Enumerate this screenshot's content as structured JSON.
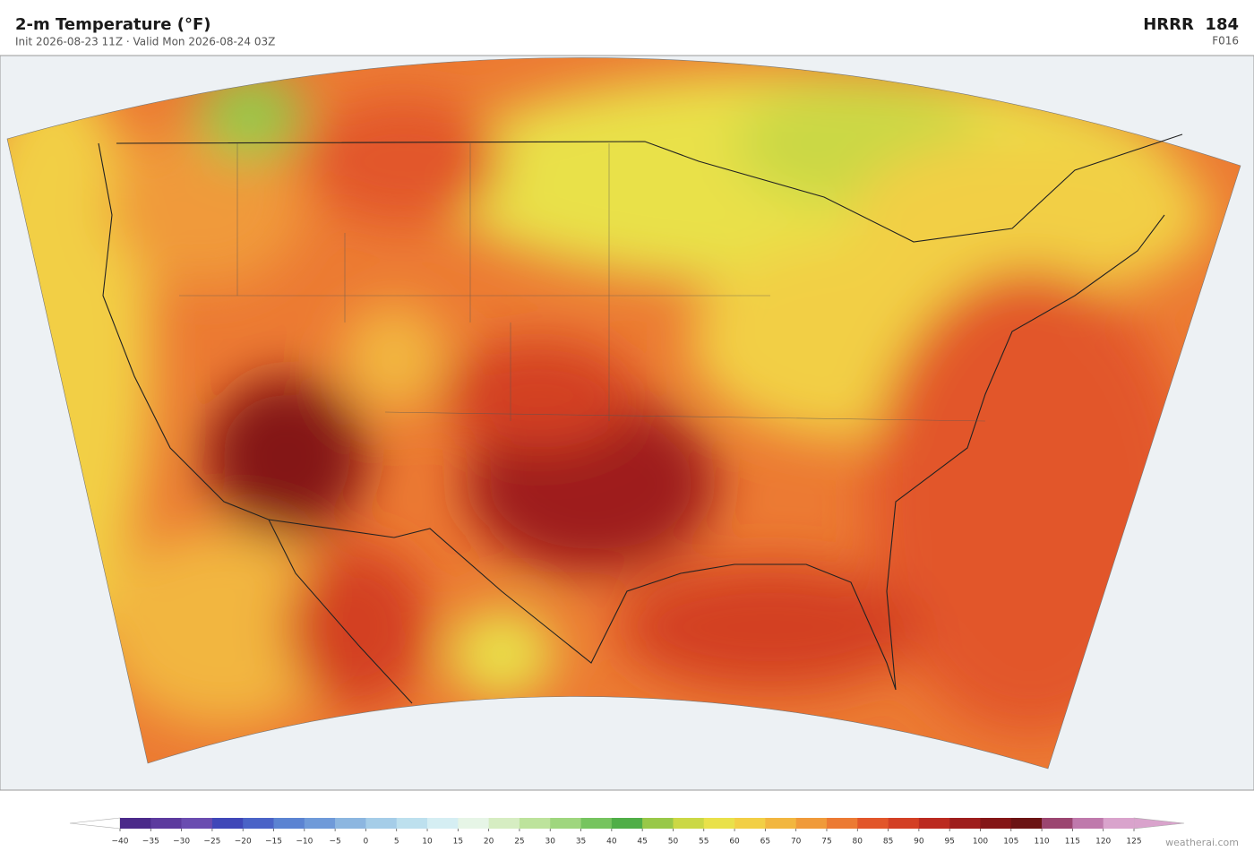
{
  "header": {
    "title": "2-m Temperature  (°F)",
    "subtitle": "Init 2026-08-23 11Z  ·  Valid Mon 2026-08-24 03Z",
    "model": "HRRR  184",
    "forecast_hour": "F016"
  },
  "colorbar": {
    "ticks": [
      {
        "value": -40,
        "label": "−40"
      },
      {
        "value": -35,
        "label": "−35"
      },
      {
        "value": -30,
        "label": "−30"
      },
      {
        "value": -25,
        "label": "−25"
      },
      {
        "value": -20,
        "label": "−20"
      },
      {
        "value": -15,
        "label": "−15"
      },
      {
        "value": -10,
        "label": "−10"
      },
      {
        "value": -5,
        "label": "−5"
      },
      0,
      5,
      10,
      15,
      20,
      25,
      30,
      35,
      40,
      45,
      50,
      55,
      60,
      65,
      70,
      75,
      80,
      85,
      90,
      95,
      100,
      105,
      110,
      115,
      120,
      125
    ],
    "colors": [
      "#4b2a8a",
      "#5c3a9e",
      "#6a4cb0",
      "#3f47b8",
      "#4a63c7",
      "#5b83d2",
      "#6f9ad9",
      "#8cb6e0",
      "#a5cde8",
      "#bde0ee",
      "#d5eef3",
      "#e6f5e6",
      "#d6edc2",
      "#bde39c",
      "#9fd67e",
      "#76c45f",
      "#4fae47",
      "#98c848",
      "#cbd845",
      "#e9e14a",
      "#f2cf45",
      "#f2b63f",
      "#f09a3a",
      "#ec7a33",
      "#e2562a",
      "#d33f24",
      "#bb2a20",
      "#9e1d1c",
      "#841516",
      "#6b1313",
      "#9b4570",
      "#bf79ac",
      "#d9a3cc"
    ],
    "under_color": "#ffffff",
    "over_color": "#d9a3cc"
  },
  "footer": {
    "credit": "weatherai.com"
  }
}
